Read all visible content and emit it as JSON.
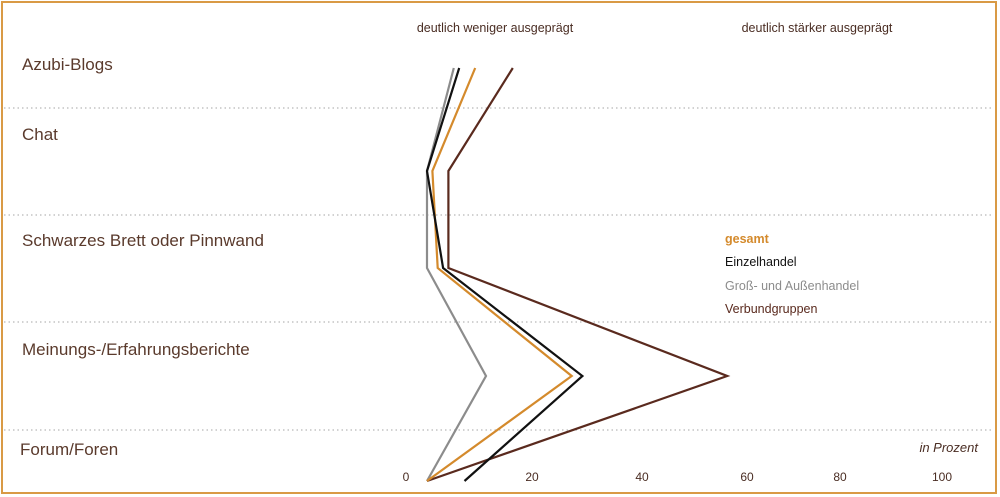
{
  "chart_data": {
    "type": "line",
    "orientation": "vertical-profile",
    "header_left": "deutlich weniger ausgeprägt",
    "header_right": "deutlich stärker ausgeprägt",
    "unit_label": "in Prozent",
    "xlim": [
      0,
      100
    ],
    "x_ticks": [
      "0",
      "20",
      "40",
      "60",
      "80",
      "100"
    ],
    "categories": [
      "Azubi-Blogs",
      "Chat",
      "Schwarzes Brett oder Pinnwand",
      "Meinungs-/Erfahrungsberichte",
      "Forum/Foren"
    ],
    "series": [
      {
        "name": "gesamt",
        "color": "#d48a2c",
        "bold": true,
        "values": [
          9,
          1,
          2,
          27,
          0
        ]
      },
      {
        "name": "Einzelhandel",
        "color": "#111111",
        "bold": false,
        "values": [
          6,
          0,
          3,
          29,
          7
        ]
      },
      {
        "name": "Groß- und Außenhandel",
        "color": "#8c8c8c",
        "bold": false,
        "values": [
          5,
          0,
          0,
          11,
          0
        ]
      },
      {
        "name": "Verbundgruppen",
        "color": "#5a2a1e",
        "bold": false,
        "values": [
          16,
          4,
          4,
          56,
          0
        ]
      }
    ],
    "grid": "dotted-rows",
    "legend_position": "right"
  }
}
